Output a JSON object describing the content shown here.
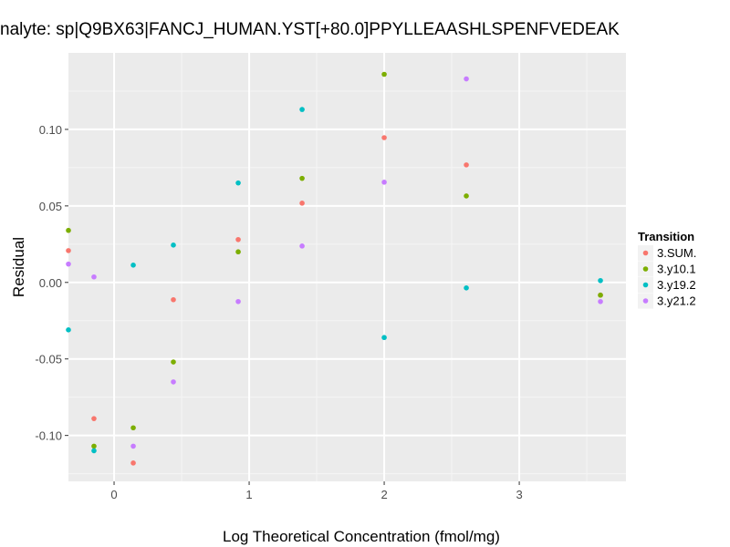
{
  "chart_data": {
    "type": "scatter",
    "title": "nalyte: sp|Q9BX63|FANCJ_HUMAN.YST[+80.0]PPYLLEAASHLSPENFVEDEAK",
    "xlabel": "Log Theoretical Concentration (fmol/mg)",
    "ylabel": "Residual",
    "xlim": [
      -0.338,
      3.79
    ],
    "ylim": [
      -0.13,
      0.15
    ],
    "xticks": [
      {
        "v": 0,
        "label": "0"
      },
      {
        "v": 1,
        "label": "1"
      },
      {
        "v": 2,
        "label": "2"
      },
      {
        "v": 3,
        "label": "3"
      }
    ],
    "yticks": [
      {
        "v": 0.1,
        "label": "0.10"
      },
      {
        "v": 0.05,
        "label": "0.05"
      },
      {
        "v": 0,
        "label": "0.00"
      },
      {
        "v": -0.05,
        "label": "-0.05"
      },
      {
        "v": -0.1,
        "label": "-0.10"
      }
    ],
    "grid": true,
    "legend": {
      "title": "Transition",
      "placement": "right"
    },
    "x": [
      -0.338,
      -0.149,
      0.142,
      0.439,
      0.919,
      1.392,
      2.0,
      2.608,
      3.601
    ],
    "series": [
      {
        "name": "3.SUM.",
        "color": "#F8766D",
        "values": [
          0.0208,
          -0.089,
          -0.118,
          -0.0113,
          0.028,
          0.0518,
          0.0946,
          0.0768,
          -0.0083
        ]
      },
      {
        "name": "3.y10.1",
        "color": "#7CAE00",
        "values": [
          0.034,
          -0.107,
          -0.095,
          -0.052,
          0.02,
          0.068,
          0.136,
          0.0565,
          -0.0083
        ]
      },
      {
        "name": "3.y19.2",
        "color": "#00BFC4",
        "values": [
          -0.031,
          -0.11,
          0.0113,
          0.0244,
          0.065,
          0.113,
          -0.036,
          -0.0036,
          0.0012
        ]
      },
      {
        "name": "3.y21.2",
        "color": "#C77CFF",
        "values": [
          0.012,
          0.0036,
          -0.107,
          -0.065,
          -0.0125,
          0.0238,
          0.0655,
          0.133,
          -0.0125
        ]
      }
    ]
  }
}
